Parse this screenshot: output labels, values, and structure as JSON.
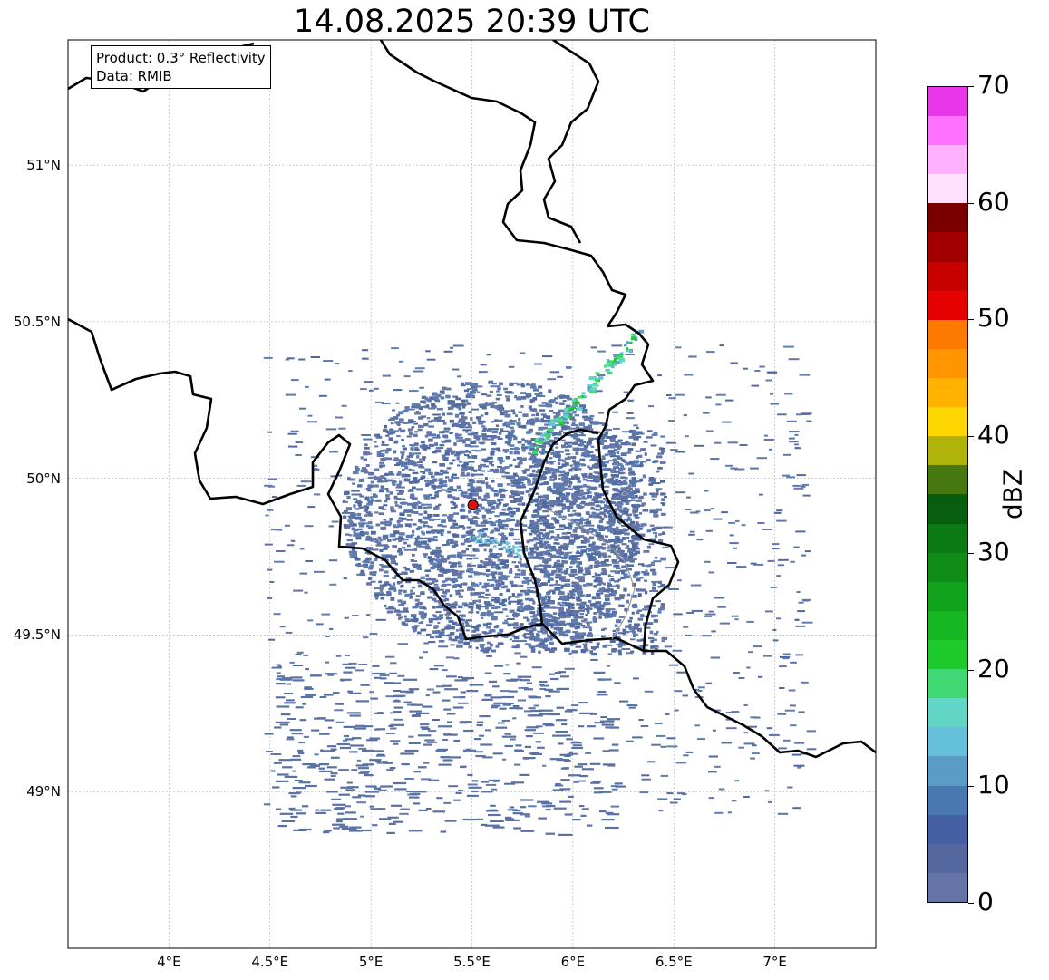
{
  "title": "14.08.2025 20:39 UTC",
  "info": {
    "product": "Product: 0.3° Reflectivity",
    "data": "Data: RMIB"
  },
  "map": {
    "lon_range": [
      3.5,
      7.5
    ],
    "lat_range": [
      48.5,
      51.4
    ],
    "grid": true,
    "lon_ticks": [
      {
        "value": 4.0,
        "label": "4°E"
      },
      {
        "value": 4.5,
        "label": "4.5°E"
      },
      {
        "value": 5.0,
        "label": "5°E"
      },
      {
        "value": 5.5,
        "label": "5.5°E"
      },
      {
        "value": 6.0,
        "label": "6°E"
      },
      {
        "value": 6.5,
        "label": "6.5°E"
      },
      {
        "value": 7.0,
        "label": "7°E"
      }
    ],
    "lat_ticks": [
      {
        "value": 49.0,
        "label": "49°N"
      },
      {
        "value": 49.5,
        "label": "49.5°N"
      },
      {
        "value": 50.0,
        "label": "50°N"
      },
      {
        "value": 50.5,
        "label": "50.5°N"
      },
      {
        "value": 51.0,
        "label": "51°N"
      }
    ],
    "radar_site": {
      "lon": 5.505,
      "lat": 49.915,
      "color": "#e01010"
    }
  },
  "colorbar": {
    "label": "dBZ",
    "min": 0,
    "max": 70,
    "ticks": [
      {
        "value": 0,
        "label": "0"
      },
      {
        "value": 10,
        "label": "10"
      },
      {
        "value": 20,
        "label": "20"
      },
      {
        "value": 30,
        "label": "30"
      },
      {
        "value": 40,
        "label": "40"
      },
      {
        "value": 50,
        "label": "50"
      },
      {
        "value": 60,
        "label": "60"
      },
      {
        "value": 70,
        "label": "70"
      }
    ],
    "colors": [
      "#6673a6",
      "#55679f",
      "#4460a3",
      "#4a78b0",
      "#5b9cc6",
      "#65c0da",
      "#61d6c4",
      "#3fd873",
      "#1ec92c",
      "#15b823",
      "#11a31b",
      "#0f8d17",
      "#0c7a14",
      "#085e0f",
      "#47770f",
      "#b0b40a",
      "#ffd700",
      "#ffb200",
      "#ff9500",
      "#ff7a00",
      "#e60000",
      "#c80000",
      "#a20000",
      "#7a0000",
      "#ffe0ff",
      "#ffb0ff",
      "#ff70ff",
      "#ea36ea"
    ]
  }
}
